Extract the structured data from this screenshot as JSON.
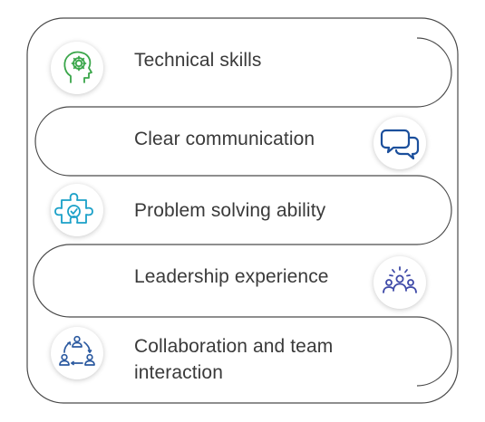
{
  "items": [
    {
      "label": "Technical skills",
      "icon": "gear-head-icon",
      "color": "#3aa64a"
    },
    {
      "label": "Clear communication",
      "icon": "chat-bubbles-icon",
      "color": "#1b4f9c"
    },
    {
      "label": "Problem solving ability",
      "icon": "puzzle-check-icon",
      "color": "#1aa0c8"
    },
    {
      "label": "Leadership experience",
      "icon": "team-leader-icon",
      "color": "#3f4aa8"
    },
    {
      "label": "Collaboration and team interaction",
      "icon": "collaboration-cycle-icon",
      "color": "#2c5aa0"
    }
  ]
}
